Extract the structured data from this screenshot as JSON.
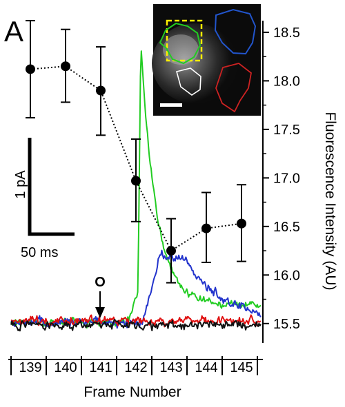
{
  "panel_label": "A",
  "chart_data": {
    "type": "line",
    "xlabel": "Frame Number",
    "ylabel": "Fluorescence Intensity (AU)",
    "x_categories": [
      "139",
      "140",
      "141",
      "142",
      "143",
      "144",
      "145"
    ],
    "y_axis": {
      "side": "right",
      "ylim": [
        15.3,
        18.62
      ],
      "ticks": [
        "15.5",
        "16.0",
        "16.5",
        "17.0",
        "17.5",
        "18.0",
        "18.5"
      ],
      "tick_values": [
        15.5,
        16.0,
        16.5,
        17.0,
        17.5,
        18.0,
        18.5
      ]
    },
    "fluorescence_series": {
      "style": "black markers with dotted connecting line and error bars",
      "points": [
        {
          "frame": 139,
          "mean": 18.12,
          "err_high": 18.62,
          "err_low": 17.62
        },
        {
          "frame": 140,
          "mean": 18.15,
          "err_high": 18.53,
          "err_low": 17.78
        },
        {
          "frame": 141,
          "mean": 17.9,
          "err_high": 18.35,
          "err_low": 17.44
        },
        {
          "frame": 142,
          "mean": 16.97,
          "err_high": 17.4,
          "err_low": 16.55
        },
        {
          "frame": 143,
          "mean": 16.25,
          "err_high": 16.58,
          "err_low": 15.92
        },
        {
          "frame": 144,
          "mean": 16.48,
          "err_high": 16.85,
          "err_low": 16.13
        },
        {
          "frame": 145,
          "mean": 16.53,
          "err_high": 16.93,
          "err_low": 16.14
        }
      ]
    },
    "current_traces": [
      {
        "color": "#22cc22",
        "shape": "large sharp peak rising at frame ~142 then decaying"
      },
      {
        "color": "#2233cc",
        "shape": "moderate broad rise after frame ~142.5"
      },
      {
        "color": "#e01010",
        "shape": "baseline noise"
      },
      {
        "color": "#111111",
        "shape": "baseline noise"
      }
    ],
    "scale_bar": {
      "vertical_label": "1 pA",
      "horizontal_label": "50 ms"
    },
    "event_marker": {
      "label": "O",
      "frame": 141.2
    },
    "inset_image": {
      "style": "grayscale fluorescence micrograph with ROI outlines",
      "roi_colors": [
        "#22cc22",
        "#2255cc",
        "#ffffff",
        "#cc2222",
        "#ffee00"
      ],
      "has_scale_bar": true
    }
  }
}
